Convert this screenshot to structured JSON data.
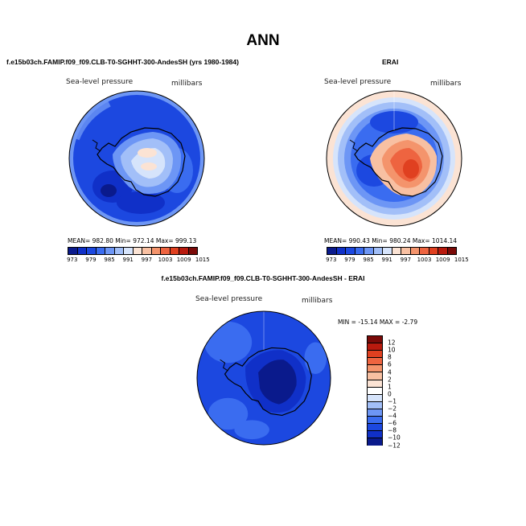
{
  "figure": {
    "title": "ANN"
  },
  "panel_model": {
    "title": "f.e15b03ch.FAMIP.f09_f09.CLB-T0-SGHHT-300-AndesSH (yrs 1980-1984)",
    "variable": "Sea-level pressure",
    "units": "millibars",
    "stats": "MEAN= 982.80  Min= 972.14  Max= 999.13",
    "colorbar_labels": [
      "973",
      "979",
      "985",
      "991",
      "997",
      "1003",
      "1009",
      "1015"
    ]
  },
  "panel_obs": {
    "title": "ERAI",
    "variable": "Sea-level pressure",
    "units": "millibars",
    "stats": "MEAN= 990.43  Min= 980.24  Max= 1014.14",
    "colorbar_labels": [
      "973",
      "979",
      "985",
      "991",
      "997",
      "1003",
      "1009",
      "1015"
    ]
  },
  "panel_diff": {
    "title": "f.e15b03ch.FAMIP.f09_f09.CLB-T0-SGHHT-300-AndesSH - ERAI",
    "variable": "Sea-level pressure",
    "units": "millibars",
    "stats": "MIN = -15.14 MAX =  -2.79",
    "colorbar_labels": [
      "12",
      "10",
      "8",
      "6",
      "4",
      "2",
      "1",
      "0",
      "−1",
      "−2",
      "−4",
      "−6",
      "−8",
      "−10",
      "−12"
    ]
  },
  "colors": {
    "abs_scale": [
      "#0a1a8c",
      "#1030c8",
      "#1c48e0",
      "#3a6cf0",
      "#6d96f5",
      "#a2bff8",
      "#d6e4fb",
      "#fbe3d4",
      "#f8c0a2",
      "#f4946c",
      "#ee6440",
      "#e04020",
      "#b81a0e",
      "#7a0a08"
    ],
    "diff_scale": [
      "#7a0a08",
      "#b81a0e",
      "#e04020",
      "#ee6440",
      "#f4946c",
      "#f8c0a2",
      "#fbe3d4",
      "#ffffff",
      "#d6e4fb",
      "#a2bff8",
      "#6d96f5",
      "#3a6cf0",
      "#1c48e0",
      "#1030c8",
      "#0a1a8c"
    ],
    "land_outline": "#000000"
  }
}
